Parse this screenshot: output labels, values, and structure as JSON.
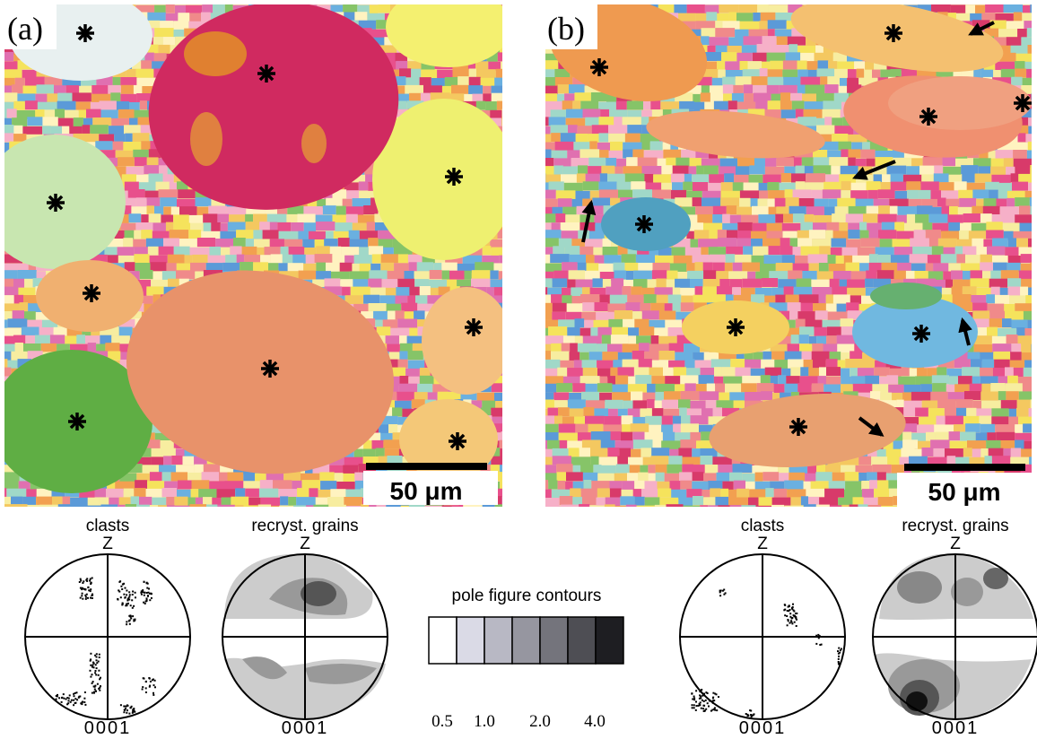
{
  "panels": [
    {
      "label": "(a)",
      "scale_bar": "50 μm",
      "pole_figures": [
        {
          "title": "clasts",
          "axis": "Z",
          "plane": "0001"
        },
        {
          "title": "recryst. grains",
          "axis": "Z",
          "plane": "0001"
        }
      ]
    },
    {
      "label": "(b)",
      "scale_bar": "50 μm",
      "pole_figures": [
        {
          "title": "clasts",
          "axis": "Z",
          "plane": "0001"
        },
        {
          "title": "recryst. grains",
          "axis": "Z",
          "plane": "0001"
        }
      ]
    }
  ],
  "legend": {
    "title": "pole figure contours",
    "labels": [
      "0.5",
      "1.0",
      "2.0",
      "4.0"
    ]
  }
}
